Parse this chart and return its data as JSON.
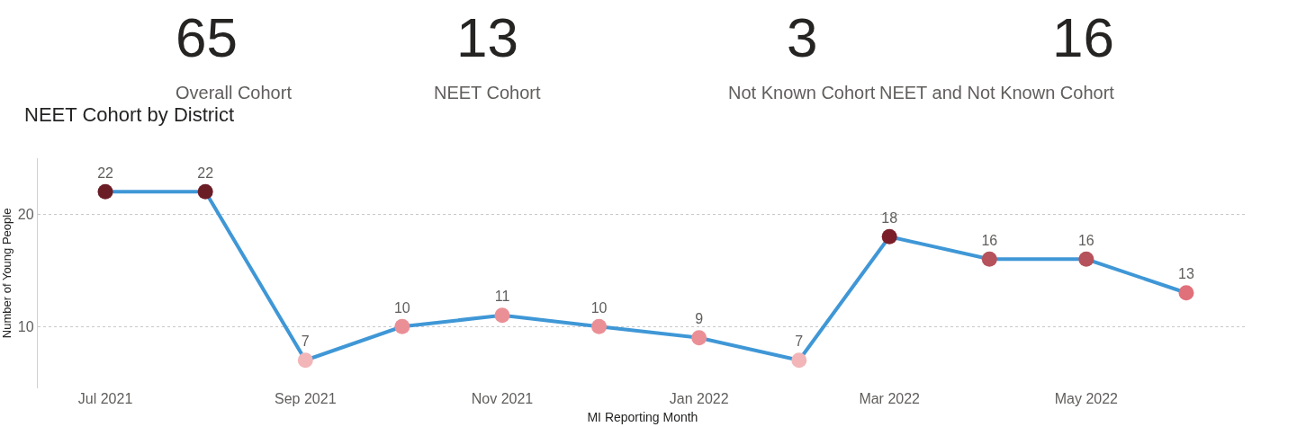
{
  "chart_data": [
    {
      "type": "other",
      "annotations": [
        "65",
        "Overall Cohort",
        "13",
        "NEET Cohort",
        "3",
        "Not Known Cohort",
        "16",
        "NEET and Not Known Cohort"
      ]
    },
    {
      "type": "line",
      "title": "NEET Cohort by District",
      "xlabel": "MI Reporting Month",
      "ylabel": "Number of Young People",
      "x": [
        "2021-07",
        "2021-08",
        "2021-09",
        "2021-10",
        "2021-11",
        "2021-12",
        "2022-01",
        "2022-02",
        "2022-03",
        "2022-04",
        "2022-05",
        "2022-06"
      ],
      "series": [
        {
          "color": "#3f97d6",
          "values": [
            22,
            22,
            7,
            10,
            11,
            10,
            9,
            7,
            18,
            16,
            16,
            13
          ],
          "colors": [
            "#6b1d26",
            "#6b1d26",
            "#f2b5b8",
            "#eb8f96",
            "#eb8f96",
            "#eb8f96",
            "#eb8f96",
            "#f2b5b8",
            "#7a1f2a",
            "#b5525c",
            "#b5525c",
            "#e0707a"
          ]
        }
      ],
      "xlim": [
        "2021-06-10",
        "2022-06-20"
      ],
      "xticks": [
        {
          "value": "2021-07",
          "label": "Jul 2021"
        },
        {
          "value": "2021-09",
          "label": "Sep 2021"
        },
        {
          "value": "2021-11",
          "label": "Nov 2021"
        },
        {
          "value": "2022-01",
          "label": "Jan 2022"
        },
        {
          "value": "2022-03",
          "label": "Mar 2022"
        },
        {
          "value": "2022-05",
          "label": "May 2022"
        }
      ],
      "ylim": [
        4.5,
        25
      ],
      "yticks": [
        10,
        20
      ],
      "grid": "y",
      "marker": "circle",
      "line_style": "solid",
      "data_labels": true,
      "legend": false
    }
  ]
}
